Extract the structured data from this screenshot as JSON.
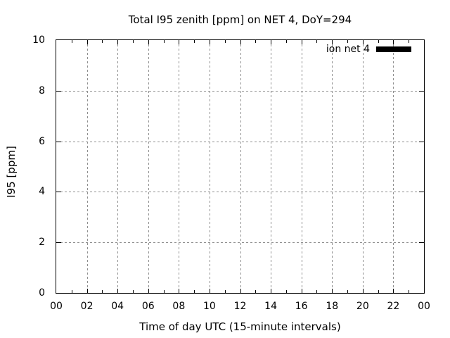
{
  "chart_data": {
    "type": "line",
    "title": "Total I95 zenith [ppm] on NET 4, DoY=294",
    "xlabel": "Time of day UTC (15-minute intervals)",
    "ylabel": "I95 [ppm]",
    "x_tick_labels": [
      "00",
      "02",
      "04",
      "06",
      "08",
      "10",
      "12",
      "14",
      "16",
      "18",
      "20",
      "22",
      "00"
    ],
    "y_tick_labels": [
      "0",
      "2",
      "4",
      "6",
      "8",
      "10"
    ],
    "xlim_hours": [
      0,
      24
    ],
    "ylim": [
      0,
      10
    ],
    "x_minor_tick_every_hours": 1,
    "grid": true,
    "grid_style": "gray-dashed",
    "legend": {
      "position": "top-right",
      "entries": [
        {
          "label": "ion net 4",
          "color": "#000000",
          "style": "thick-line"
        }
      ]
    },
    "series": [
      {
        "name": "ion net 4",
        "x": [],
        "y": []
      }
    ]
  },
  "colors": {
    "background": "#ffffff",
    "axis": "#000000",
    "text": "#000000",
    "grid": "#8f8f8f",
    "legend_sample": "#000000"
  }
}
